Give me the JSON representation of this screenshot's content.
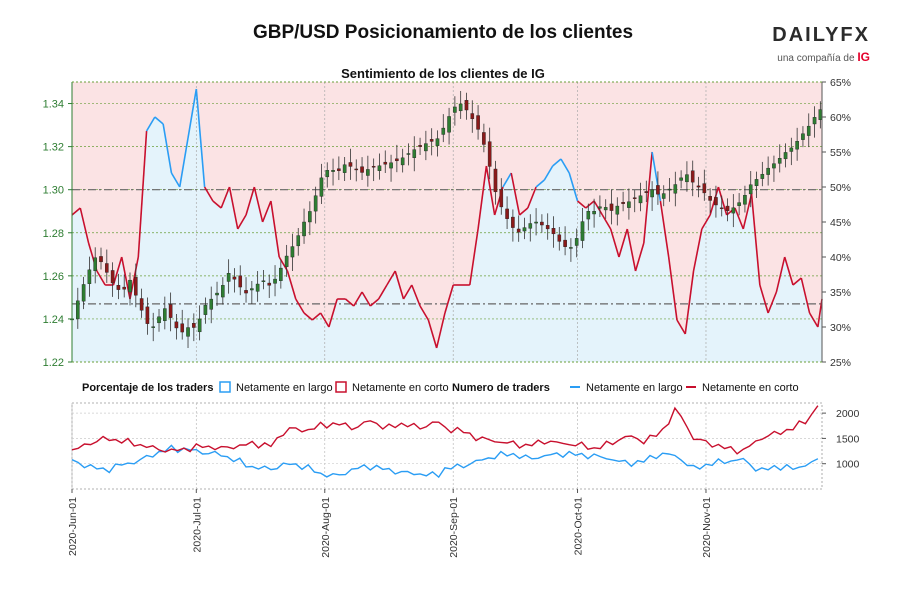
{
  "header": {
    "title": "GBP/USD Posicionamiento de los clientes",
    "subtitle": "Sentimiento de los clientes de IG"
  },
  "logo": {
    "word": "DAILYFX",
    "sub": "una compañía de ",
    "brand": "IG"
  },
  "legend": {
    "pct_heading": "Porcentaje de los traders",
    "pct_long": "Netamente en largo",
    "pct_short": "Netamente en corto",
    "num_heading": "Numero de traders",
    "num_long": "Netamente en largo",
    "num_short": "Netamente en corto"
  },
  "colors": {
    "long": "#2a9df4",
    "short": "#c8102e",
    "long_fill": "#e4f3fb",
    "short_fill": "#fbe3e4",
    "candle_up": "#2e7d32",
    "candle_down": "#8b1a1a",
    "price_axis": "#2e7d32"
  },
  "chart_data": [
    {
      "type": "candlestick",
      "name": "GBP/USD",
      "y_axis_left": {
        "ylim": [
          1.22,
          1.35
        ],
        "ticks": [
          "1.22",
          "1.24",
          "1.26",
          "1.28",
          "1.30",
          "1.32",
          "1.34"
        ]
      },
      "y_axis_right": {
        "ylim": [
          25,
          65
        ],
        "ticks": [
          "25%",
          "30%",
          "35%",
          "40%",
          "45%",
          "50%",
          "55%",
          "60%",
          "65%"
        ]
      },
      "x_ticks": [
        "2020-Jun-01",
        "2020-Jul-01",
        "2020-Aug-01",
        "2020-Sep-01",
        "2020-Oct-01",
        "2020-Nov-01"
      ],
      "x_range_days": [
        0,
        181
      ],
      "reference_lines": [
        1.3,
        1.247
      ],
      "close_path": [
        [
          0,
          1.24
        ],
        [
          2,
          1.252
        ],
        [
          4,
          1.262
        ],
        [
          6,
          1.27
        ],
        [
          8,
          1.263
        ],
        [
          10,
          1.256
        ],
        [
          12,
          1.252
        ],
        [
          14,
          1.258
        ],
        [
          16,
          1.248
        ],
        [
          18,
          1.238
        ],
        [
          20,
          1.236
        ],
        [
          22,
          1.246
        ],
        [
          24,
          1.24
        ],
        [
          26,
          1.233
        ],
        [
          28,
          1.236
        ],
        [
          30,
          1.236
        ],
        [
          32,
          1.246
        ],
        [
          34,
          1.25
        ],
        [
          36,
          1.254
        ],
        [
          38,
          1.262
        ],
        [
          40,
          1.256
        ],
        [
          42,
          1.252
        ],
        [
          44,
          1.255
        ],
        [
          46,
          1.258
        ],
        [
          48,
          1.255
        ],
        [
          50,
          1.262
        ],
        [
          52,
          1.27
        ],
        [
          54,
          1.276
        ],
        [
          56,
          1.285
        ],
        [
          58,
          1.292
        ],
        [
          60,
          1.305
        ],
        [
          62,
          1.31
        ],
        [
          64,
          1.308
        ],
        [
          66,
          1.312
        ],
        [
          68,
          1.31
        ],
        [
          70,
          1.308
        ],
        [
          72,
          1.31
        ],
        [
          74,
          1.311
        ],
        [
          76,
          1.312
        ],
        [
          78,
          1.313
        ],
        [
          80,
          1.315
        ],
        [
          82,
          1.318
        ],
        [
          84,
          1.32
        ],
        [
          86,
          1.322
        ],
        [
          88,
          1.323
        ],
        [
          90,
          1.33
        ],
        [
          92,
          1.338
        ],
        [
          94,
          1.34
        ],
        [
          96,
          1.335
        ],
        [
          98,
          1.328
        ],
        [
          100,
          1.318
        ],
        [
          102,
          1.3
        ],
        [
          104,
          1.29
        ],
        [
          106,
          1.283
        ],
        [
          108,
          1.28
        ],
        [
          110,
          1.284
        ],
        [
          112,
          1.285
        ],
        [
          114,
          1.283
        ],
        [
          116,
          1.28
        ],
        [
          118,
          1.275
        ],
        [
          120,
          1.272
        ],
        [
          122,
          1.278
        ],
        [
          124,
          1.29
        ],
        [
          126,
          1.29
        ],
        [
          128,
          1.293
        ],
        [
          130,
          1.29
        ],
        [
          132,
          1.293
        ],
        [
          134,
          1.294
        ],
        [
          136,
          1.296
        ],
        [
          138,
          1.298
        ],
        [
          140,
          1.3
        ],
        [
          142,
          1.297
        ],
        [
          144,
          1.3
        ],
        [
          146,
          1.303
        ],
        [
          148,
          1.308
        ],
        [
          150,
          1.303
        ],
        [
          152,
          1.3
        ],
        [
          154,
          1.295
        ],
        [
          156,
          1.292
        ],
        [
          158,
          1.29
        ],
        [
          160,
          1.292
        ],
        [
          162,
          1.296
        ],
        [
          164,
          1.303
        ],
        [
          166,
          1.306
        ],
        [
          168,
          1.31
        ],
        [
          170,
          1.313
        ],
        [
          172,
          1.317
        ],
        [
          174,
          1.32
        ],
        [
          176,
          1.325
        ],
        [
          178,
          1.33
        ],
        [
          180,
          1.336
        ],
        [
          181,
          1.338
        ]
      ],
      "net_long_pct_path": [
        [
          0,
          46
        ],
        [
          2,
          47
        ],
        [
          4,
          42
        ],
        [
          6,
          38
        ],
        [
          8,
          36
        ],
        [
          10,
          36
        ],
        [
          12,
          40
        ],
        [
          14,
          34
        ],
        [
          16,
          40
        ],
        [
          18,
          58
        ],
        [
          20,
          60
        ],
        [
          22,
          59
        ],
        [
          24,
          52
        ],
        [
          26,
          50
        ],
        [
          28,
          57
        ],
        [
          30,
          64
        ],
        [
          32,
          50
        ],
        [
          34,
          48
        ],
        [
          36,
          47
        ],
        [
          38,
          50
        ],
        [
          40,
          44
        ],
        [
          42,
          46
        ],
        [
          44,
          50
        ],
        [
          46,
          45
        ],
        [
          48,
          48
        ],
        [
          50,
          40
        ],
        [
          52,
          38
        ],
        [
          54,
          34
        ],
        [
          56,
          32
        ],
        [
          58,
          31
        ],
        [
          60,
          32
        ],
        [
          62,
          30
        ],
        [
          64,
          34
        ],
        [
          66,
          34
        ],
        [
          68,
          33
        ],
        [
          70,
          35
        ],
        [
          72,
          33
        ],
        [
          74,
          34
        ],
        [
          76,
          36
        ],
        [
          78,
          38
        ],
        [
          80,
          34
        ],
        [
          82,
          36
        ],
        [
          84,
          33
        ],
        [
          86,
          31
        ],
        [
          88,
          27
        ],
        [
          90,
          32
        ],
        [
          92,
          36
        ],
        [
          94,
          36
        ],
        [
          96,
          36
        ],
        [
          98,
          44
        ],
        [
          100,
          53
        ],
        [
          102,
          46
        ],
        [
          104,
          50
        ],
        [
          106,
          52
        ],
        [
          108,
          46
        ],
        [
          110,
          47
        ],
        [
          112,
          50
        ],
        [
          114,
          51
        ],
        [
          116,
          53
        ],
        [
          118,
          54
        ],
        [
          120,
          52
        ],
        [
          122,
          48
        ],
        [
          124,
          47
        ],
        [
          126,
          48
        ],
        [
          128,
          46
        ],
        [
          130,
          44
        ],
        [
          132,
          40
        ],
        [
          134,
          44
        ],
        [
          136,
          38
        ],
        [
          138,
          42
        ],
        [
          140,
          55
        ],
        [
          142,
          48
        ],
        [
          144,
          40
        ],
        [
          146,
          31
        ],
        [
          148,
          29
        ],
        [
          150,
          38
        ],
        [
          152,
          44
        ],
        [
          154,
          46
        ],
        [
          156,
          50
        ],
        [
          158,
          46
        ],
        [
          160,
          47
        ],
        [
          162,
          44
        ],
        [
          164,
          49
        ],
        [
          166,
          36
        ],
        [
          168,
          32
        ],
        [
          170,
          35
        ],
        [
          172,
          40
        ],
        [
          174,
          36
        ],
        [
          176,
          37
        ],
        [
          178,
          32
        ],
        [
          180,
          30
        ],
        [
          181,
          34
        ]
      ]
    },
    {
      "type": "line",
      "name": "Numero de traders",
      "y_axis_right": {
        "ylim": [
          500,
          2200
        ],
        "ticks": [
          "1000",
          "1500",
          "2000"
        ]
      },
      "series": [
        {
          "name": "Netamente en largo",
          "values_path": [
            [
              0,
              1050
            ],
            [
              4,
              950
            ],
            [
              8,
              870
            ],
            [
              12,
              980
            ],
            [
              16,
              1050
            ],
            [
              20,
              1200
            ],
            [
              24,
              1300
            ],
            [
              28,
              1280
            ],
            [
              32,
              1220
            ],
            [
              36,
              1180
            ],
            [
              40,
              1050
            ],
            [
              44,
              920
            ],
            [
              48,
              900
            ],
            [
              52,
              1000
            ],
            [
              56,
              950
            ],
            [
              60,
              800
            ],
            [
              64,
              750
            ],
            [
              68,
              900
            ],
            [
              72,
              950
            ],
            [
              76,
              880
            ],
            [
              80,
              820
            ],
            [
              84,
              800
            ],
            [
              88,
              760
            ],
            [
              90,
              900
            ],
            [
              94,
              950
            ],
            [
              98,
              1050
            ],
            [
              102,
              1150
            ],
            [
              106,
              1200
            ],
            [
              110,
              1100
            ],
            [
              114,
              1150
            ],
            [
              118,
              1200
            ],
            [
              122,
              1180
            ],
            [
              126,
              1150
            ],
            [
              130,
              1100
            ],
            [
              134,
              1000
            ],
            [
              138,
              1050
            ],
            [
              142,
              1200
            ],
            [
              146,
              1150
            ],
            [
              150,
              900
            ],
            [
              154,
              1000
            ],
            [
              158,
              1050
            ],
            [
              162,
              1080
            ],
            [
              166,
              850
            ],
            [
              170,
              950
            ],
            [
              174,
              900
            ],
            [
              178,
              1000
            ],
            [
              181,
              1100
            ]
          ]
        },
        {
          "name": "Netamente en corto",
          "values_path": [
            [
              0,
              1250
            ],
            [
              4,
              1400
            ],
            [
              8,
              1500
            ],
            [
              12,
              1450
            ],
            [
              16,
              1380
            ],
            [
              20,
              1300
            ],
            [
              24,
              1250
            ],
            [
              28,
              1300
            ],
            [
              32,
              1350
            ],
            [
              36,
              1300
            ],
            [
              40,
              1350
            ],
            [
              44,
              1400
            ],
            [
              48,
              1350
            ],
            [
              52,
              1700
            ],
            [
              56,
              1650
            ],
            [
              60,
              1750
            ],
            [
              64,
              1800
            ],
            [
              68,
              1700
            ],
            [
              72,
              1850
            ],
            [
              76,
              1700
            ],
            [
              80,
              1800
            ],
            [
              84,
              1700
            ],
            [
              88,
              1850
            ],
            [
              90,
              1700
            ],
            [
              94,
              1650
            ],
            [
              98,
              1500
            ],
            [
              102,
              1450
            ],
            [
              106,
              1400
            ],
            [
              110,
              1350
            ],
            [
              114,
              1450
            ],
            [
              118,
              1400
            ],
            [
              122,
              1380
            ],
            [
              126,
              1300
            ],
            [
              130,
              1400
            ],
            [
              134,
              1550
            ],
            [
              138,
              1450
            ],
            [
              142,
              1600
            ],
            [
              146,
              2100
            ],
            [
              150,
              1500
            ],
            [
              154,
              1400
            ],
            [
              158,
              1300
            ],
            [
              162,
              1250
            ],
            [
              166,
              1500
            ],
            [
              170,
              1600
            ],
            [
              174,
              1700
            ],
            [
              178,
              1900
            ],
            [
              180,
              2150
            ],
            [
              181,
              1950
            ]
          ]
        }
      ]
    }
  ]
}
